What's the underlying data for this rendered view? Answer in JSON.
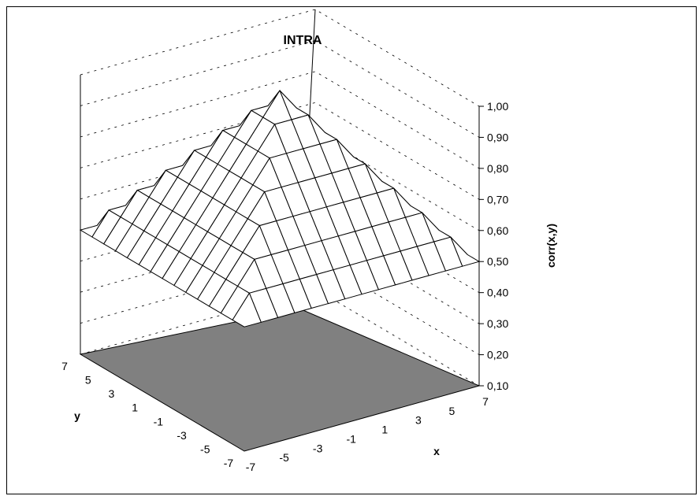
{
  "chart_data": {
    "type": "surface3d",
    "title": "INTRA",
    "xlabel": "x",
    "ylabel": "y",
    "zlabel": "corr(x,y)",
    "x_ticks": [
      "-7",
      "-5",
      "-3",
      "-1",
      "1",
      "3",
      "5",
      "7"
    ],
    "y_ticks": [
      "7",
      "5",
      "3",
      "1",
      "-1",
      "-3",
      "-5",
      "-7"
    ],
    "z_ticks": [
      "0,10",
      "0,20",
      "0,30",
      "0,40",
      "0,50",
      "0,60",
      "0,70",
      "0,80",
      "0,90",
      "1,00"
    ],
    "zlim": [
      0.1,
      1.0
    ],
    "grid_range": [
      -7,
      7
    ],
    "grid_step": 1,
    "surface": {
      "description": "corr(x,y) = 1 - 0.5 * max(|x|,|y|) / 7",
      "peak": {
        "x": 0,
        "y": 0,
        "z": 1.0
      },
      "edge_value": 0.5,
      "corner_value": 0.5
    },
    "floor_color": "#808080",
    "line_color": "#000000"
  }
}
